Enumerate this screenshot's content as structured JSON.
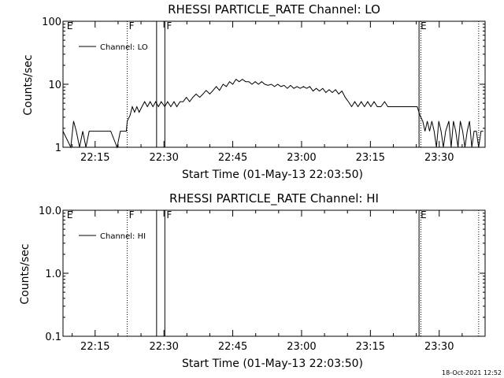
{
  "stamp": "18-Oct-2021 12:52",
  "chart_data": [
    {
      "type": "line",
      "title": "RHESSI PARTICLE_RATE Channel: LO",
      "ylabel": "Counts/sec",
      "xlabel": "Start Time (01-May-13 22:03:50)",
      "yscale": "log",
      "ylim": [
        1,
        100
      ],
      "yticks": [
        {
          "v": 1,
          "t": "1"
        },
        {
          "v": 10,
          "t": "10"
        },
        {
          "v": 100,
          "t": "100"
        }
      ],
      "xlim": [
        8,
        100
      ],
      "xticks": [
        {
          "v": 15,
          "t": "22:15"
        },
        {
          "v": 30,
          "t": "22:30"
        },
        {
          "v": 45,
          "t": "22:45"
        },
        {
          "v": 60,
          "t": "23:00"
        },
        {
          "v": 75,
          "t": "23:15"
        },
        {
          "v": 90,
          "t": "23:30"
        }
      ],
      "legend": {
        "label": "Channel: LO",
        "position": "top-left"
      },
      "markers": [
        {
          "x": 8.5,
          "label": "E",
          "style": "none"
        },
        {
          "x": 22.0,
          "label": "F",
          "style": "dotted"
        },
        {
          "x": 28.4,
          "label": "",
          "style": "solid"
        },
        {
          "x": 30.2,
          "label": "F",
          "style": "solid"
        },
        {
          "x": 85.6,
          "label": "E",
          "style": "solid"
        },
        {
          "x": 86.0,
          "label": "",
          "style": "dotted"
        },
        {
          "x": 98.6,
          "label": "",
          "style": "dotted"
        }
      ],
      "series": [
        {
          "name": "Channel: LO",
          "points": [
            [
              8,
              1.8
            ],
            [
              9.7,
              1.0
            ],
            [
              10.3,
              2.6
            ],
            [
              10.9,
              1.8
            ],
            [
              11.6,
              1.0
            ],
            [
              12.3,
              1.8
            ],
            [
              13,
              1.0
            ],
            [
              13.7,
              1.8
            ],
            [
              14.4,
              1.8
            ],
            [
              15.7,
              1.8
            ],
            [
              17,
              1.8
            ],
            [
              18.4,
              1.8
            ],
            [
              19.8,
              1.0
            ],
            [
              20.5,
              1.8
            ],
            [
              21.8,
              1.8
            ],
            [
              22.0,
              2.6
            ],
            [
              22.6,
              3.2
            ],
            [
              23.1,
              4.4
            ],
            [
              23.6,
              3.6
            ],
            [
              24.1,
              4.4
            ],
            [
              24.6,
              3.6
            ],
            [
              25.2,
              4.4
            ],
            [
              25.8,
              5.3
            ],
            [
              26.4,
              4.4
            ],
            [
              27,
              5.3
            ],
            [
              27.6,
              4.4
            ],
            [
              28.2,
              5.3
            ],
            [
              28.8,
              4.4
            ],
            [
              29.4,
              5.3
            ],
            [
              30.2,
              4.4
            ],
            [
              30.8,
              5.3
            ],
            [
              31.5,
              4.4
            ],
            [
              32.2,
              5.3
            ],
            [
              32.8,
              4.4
            ],
            [
              33.5,
              5.3
            ],
            [
              34.2,
              5.3
            ],
            [
              34.9,
              6.2
            ],
            [
              35.6,
              5.3
            ],
            [
              36.3,
              6.2
            ],
            [
              37,
              7
            ],
            [
              37.8,
              6.2
            ],
            [
              38.5,
              7
            ],
            [
              39.2,
              8
            ],
            [
              40,
              7
            ],
            [
              40.7,
              8
            ],
            [
              41.4,
              9.2
            ],
            [
              42.1,
              8
            ],
            [
              42.9,
              10
            ],
            [
              43.6,
              9.2
            ],
            [
              44.3,
              11
            ],
            [
              45,
              10
            ],
            [
              45.7,
              12
            ],
            [
              46.4,
              11
            ],
            [
              47.1,
              12
            ],
            [
              47.8,
              11
            ],
            [
              48.5,
              11
            ],
            [
              49.2,
              10
            ],
            [
              49.9,
              11
            ],
            [
              50.6,
              10
            ],
            [
              51.3,
              11
            ],
            [
              52,
              10
            ],
            [
              52.7,
              9.6
            ],
            [
              53.4,
              10
            ],
            [
              54.1,
              9.2
            ],
            [
              54.8,
              10
            ],
            [
              55.5,
              9.2
            ],
            [
              56.2,
              9.6
            ],
            [
              56.9,
              8.6
            ],
            [
              57.6,
              9.6
            ],
            [
              58.3,
              8.6
            ],
            [
              59,
              9.2
            ],
            [
              59.7,
              8.6
            ],
            [
              60.4,
              9.2
            ],
            [
              61.1,
              8.6
            ],
            [
              61.8,
              9.2
            ],
            [
              62.5,
              7.8
            ],
            [
              63.2,
              8.6
            ],
            [
              63.9,
              7.8
            ],
            [
              64.6,
              8.6
            ],
            [
              65.3,
              7.4
            ],
            [
              66,
              8.2
            ],
            [
              66.7,
              7.4
            ],
            [
              67.4,
              8.2
            ],
            [
              68.1,
              7
            ],
            [
              68.8,
              7.8
            ],
            [
              69.5,
              6.2
            ],
            [
              70.2,
              5.3
            ],
            [
              70.9,
              4.4
            ],
            [
              71.6,
              5.3
            ],
            [
              72.3,
              4.4
            ],
            [
              73,
              5.3
            ],
            [
              73.7,
              4.4
            ],
            [
              74.4,
              5.3
            ],
            [
              75.1,
              4.4
            ],
            [
              75.8,
              5.3
            ],
            [
              76.5,
              4.4
            ],
            [
              77.3,
              4.4
            ],
            [
              78.1,
              5.3
            ],
            [
              78.8,
              4.4
            ],
            [
              79.6,
              4.4
            ],
            [
              80.4,
              4.4
            ],
            [
              81.2,
              4.4
            ],
            [
              82,
              4.4
            ],
            [
              82.8,
              4.4
            ],
            [
              83.6,
              4.4
            ],
            [
              84.4,
              4.4
            ],
            [
              85.2,
              4.4
            ],
            [
              85.8,
              3.2
            ],
            [
              86.4,
              2.6
            ],
            [
              86.9,
              1.8
            ],
            [
              87.4,
              2.6
            ],
            [
              87.9,
              1.8
            ],
            [
              88.4,
              2.6
            ],
            [
              88.9,
              1.8
            ],
            [
              89.4,
              1.0
            ],
            [
              89.9,
              2.6
            ],
            [
              90.4,
              1.8
            ],
            [
              90.9,
              1.0
            ],
            [
              91.4,
              1.8
            ],
            [
              92.1,
              2.6
            ],
            [
              92.6,
              1.0
            ],
            [
              93.1,
              2.6
            ],
            [
              93.6,
              1.8
            ],
            [
              94.1,
              1.0
            ],
            [
              94.6,
              2.6
            ],
            [
              95.1,
              1.8
            ],
            [
              95.6,
              1.0
            ],
            [
              96.1,
              1.8
            ],
            [
              96.6,
              2.6
            ],
            [
              97.1,
              1.0
            ],
            [
              97.6,
              1.8
            ],
            [
              98.1,
              1.8
            ],
            [
              98.6,
              1.0
            ],
            [
              99.1,
              1.8
            ],
            [
              99.6,
              1.8
            ]
          ]
        }
      ]
    },
    {
      "type": "line",
      "title": "RHESSI PARTICLE_RATE Channel: HI",
      "ylabel": "Counts/sec",
      "xlabel": "Start Time (01-May-13 22:03:50)",
      "yscale": "log",
      "ylim": [
        0.1,
        10
      ],
      "yticks": [
        {
          "v": 0.1,
          "t": "0.1"
        },
        {
          "v": 1,
          "t": "1.0"
        },
        {
          "v": 10,
          "t": "10.0"
        }
      ],
      "xlim": [
        8,
        100
      ],
      "xticks": [
        {
          "v": 15,
          "t": "22:15"
        },
        {
          "v": 30,
          "t": "22:30"
        },
        {
          "v": 45,
          "t": "22:45"
        },
        {
          "v": 60,
          "t": "23:00"
        },
        {
          "v": 75,
          "t": "23:15"
        },
        {
          "v": 90,
          "t": "23:30"
        }
      ],
      "legend": {
        "label": "Channel: HI",
        "position": "top-left"
      },
      "markers": [
        {
          "x": 8.5,
          "label": "E",
          "style": "none"
        },
        {
          "x": 22.0,
          "label": "F",
          "style": "dotted"
        },
        {
          "x": 28.4,
          "label": "",
          "style": "solid"
        },
        {
          "x": 30.2,
          "label": "F",
          "style": "solid"
        },
        {
          "x": 85.6,
          "label": "E",
          "style": "solid"
        },
        {
          "x": 86.0,
          "label": "",
          "style": "dotted"
        },
        {
          "x": 98.6,
          "label": "",
          "style": "dotted"
        }
      ],
      "series": [
        {
          "name": "Channel: HI",
          "points": []
        }
      ]
    }
  ]
}
